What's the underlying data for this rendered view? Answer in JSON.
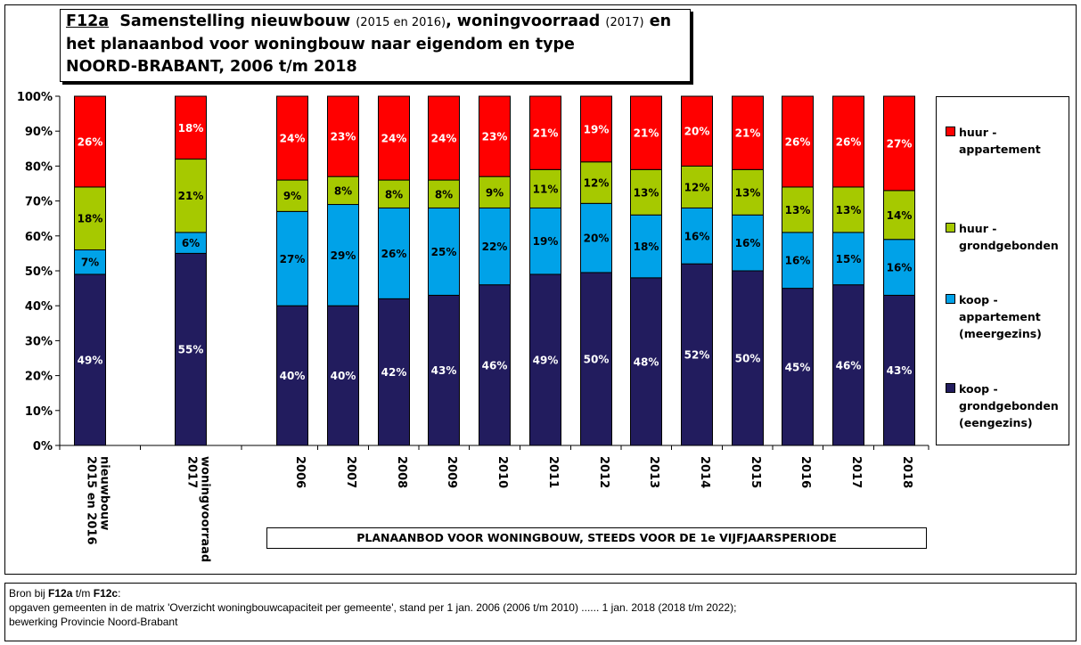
{
  "title": {
    "code": "F12a",
    "part1": "Samenstelling nieuwbouw",
    "part1_small": "(2015 en 2016)",
    "part2": ", woningvoorraad",
    "part2_small": "(2017)",
    "part3": "en",
    "line2": "het planaanbod voor woningbouw naar eigendom en type",
    "line3": "NOORD-BRABANT, 2006 t/m 2018"
  },
  "plan_label": "PLANAANBOD VOOR WONINGBOUW, STEEDS VOOR DE 1e VIJFJAARSPERIODE",
  "footnote": {
    "line1_prefix": "Bron bij",
    "line1_a": "F12a",
    "line1_mid": "t/m",
    "line1_b": "F12c",
    "line1_suffix": ":",
    "line2": "opgaven gemeenten in de matrix 'Overzicht woningbouwcapaciteit per gemeente', stand per 1 jan. 2006 (2006 t/m 2010) ...... 1 jan. 2018 (2018 t/m 2022);",
    "line3": "bewerking Provincie Noord-Brabant"
  },
  "colors": {
    "huur_appartement": "#ff0000",
    "huur_grondgebonden": "#a6c900",
    "koop_appartement": "#00a2e8",
    "koop_grondgebonden": "#221c5e"
  },
  "chart_data": {
    "type": "bar",
    "stacked": true,
    "percent": true,
    "ylim": [
      0,
      100
    ],
    "yticks": [
      "0%",
      "10%",
      "20%",
      "30%",
      "40%",
      "50%",
      "60%",
      "70%",
      "80%",
      "90%",
      "100%"
    ],
    "categories": [
      [
        "nieuwbouw",
        "2015 en 2016"
      ],
      [
        "woningvoorraad",
        "2017"
      ],
      [
        "2006"
      ],
      [
        "2007"
      ],
      [
        "2008"
      ],
      [
        "2009"
      ],
      [
        "2010"
      ],
      [
        "2011"
      ],
      [
        "2012"
      ],
      [
        "2013"
      ],
      [
        "2014"
      ],
      [
        "2015"
      ],
      [
        "2016"
      ],
      [
        "2017"
      ],
      [
        "2018"
      ]
    ],
    "series": [
      {
        "name": "koop - grondgebonden (eengezins)",
        "key": "koop_grondgebonden",
        "values": [
          49,
          55,
          40,
          40,
          42,
          43,
          46,
          49,
          50,
          48,
          52,
          50,
          45,
          46,
          43
        ],
        "label_color": "#ffffff"
      },
      {
        "name": "koop - appartement (meergezins)",
        "key": "koop_appartement",
        "values": [
          7,
          6,
          27,
          29,
          26,
          25,
          22,
          19,
          20,
          18,
          16,
          16,
          16,
          15,
          16
        ],
        "label_color": "#000000"
      },
      {
        "name": "huur - grondgebonden",
        "key": "huur_grondgebonden",
        "values": [
          18,
          21,
          9,
          8,
          8,
          8,
          9,
          11,
          12,
          13,
          12,
          13,
          13,
          13,
          14
        ],
        "label_color": "#000000"
      },
      {
        "name": "huur - appartement",
        "key": "huur_appartement",
        "values": [
          26,
          18,
          24,
          23,
          24,
          24,
          23,
          21,
          19,
          21,
          20,
          21,
          26,
          26,
          27
        ],
        "label_color": "#ffffff"
      }
    ],
    "legend": [
      {
        "key": "huur_appartement",
        "lines": [
          "huur -",
          "appartement"
        ]
      },
      {
        "key": "huur_grondgebonden",
        "lines": [
          "huur -",
          "grondgebonden"
        ]
      },
      {
        "key": "koop_appartement",
        "lines": [
          "koop -",
          "appartement",
          "(meergezins)"
        ]
      },
      {
        "key": "koop_grondgebonden",
        "lines": [
          "koop -",
          "grondgebonden",
          "(eengezins)"
        ]
      }
    ],
    "legend_position": "right",
    "grid": false
  }
}
